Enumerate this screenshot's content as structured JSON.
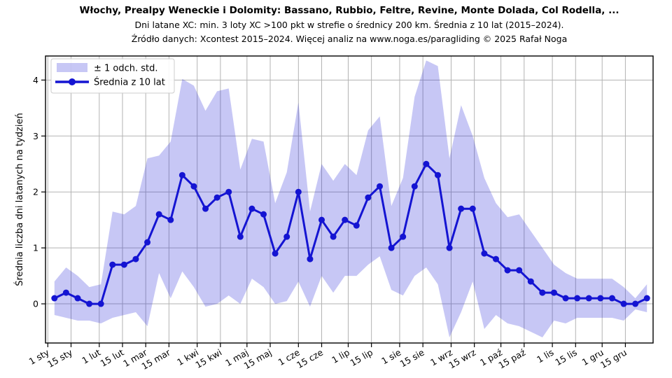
{
  "chart_data": {
    "type": "line",
    "title": "Włochy, Prealpy Weneckie i Dolomity: Bassano, Rubbio, Feltre, Revine, Monte Dolada, Col Rodella, ...",
    "subtitle": "Dni latane XC: min. 3 loty XC >100 pkt w strefie o średnicy 200 km. Średnia z 10 lat (2015–2024).",
    "source_note": "Źródło danych: Xcontest 2015–2024. Więcej analiz na www.noga.es/paragliding © 2025 Rafał Noga",
    "ylabel": "Średnia liczba dni latanych na tydzień",
    "x_tick_labels": [
      "1 sty",
      "15 sty",
      "1 lut",
      "15 lut",
      "1 mar",
      "15 mar",
      "1 kwi",
      "15 kwi",
      "1 maj",
      "15 maj",
      "1 cze",
      "15 cze",
      "1 lip",
      "15 lip",
      "1 sie",
      "15 sie",
      "1 wrz",
      "15 wrz",
      "1 paź",
      "15 paź",
      "1 lis",
      "15 lis",
      "1 gru",
      "15 gru"
    ],
    "x_tick_days": [
      0,
      14,
      31,
      45,
      59,
      73,
      90,
      104,
      120,
      134,
      151,
      165,
      181,
      195,
      212,
      226,
      243,
      257,
      273,
      287,
      304,
      318,
      334,
      348
    ],
    "y_ticks": [
      0,
      1,
      2,
      3,
      4
    ],
    "ylim": [
      -0.7,
      4.43
    ],
    "grid": true,
    "legend_position": "upper-left",
    "x_start_day": 4,
    "x_step_days": 7,
    "series": [
      {
        "name": "Średnia z 10 lat",
        "type": "line+marker",
        "values": [
          0.1,
          0.2,
          0.1,
          0.0,
          0.0,
          0.7,
          0.7,
          0.8,
          1.1,
          1.6,
          1.5,
          2.3,
          2.1,
          1.7,
          1.9,
          2.0,
          1.2,
          1.7,
          1.6,
          0.9,
          1.2,
          2.0,
          0.8,
          1.5,
          1.2,
          1.5,
          1.4,
          1.9,
          2.1,
          1.0,
          1.2,
          2.1,
          2.5,
          2.3,
          1.0,
          1.7,
          1.7,
          0.9,
          0.8,
          0.6,
          0.6,
          0.4,
          0.2,
          0.2,
          0.1,
          0.1,
          0.1,
          0.1,
          0.1,
          0.0,
          0.0,
          0.1
        ]
      },
      {
        "name": "± 1 odch. std.",
        "type": "band",
        "std": [
          0.3,
          0.45,
          0.4,
          0.3,
          0.35,
          0.95,
          0.9,
          0.95,
          1.5,
          1.05,
          1.4,
          1.72,
          1.8,
          1.75,
          1.9,
          1.85,
          1.2,
          1.25,
          1.3,
          0.9,
          1.15,
          1.6,
          0.85,
          1.0,
          1.0,
          1.0,
          0.9,
          1.2,
          1.25,
          0.75,
          1.05,
          1.6,
          1.85,
          1.95,
          1.6,
          1.85,
          1.3,
          1.35,
          1.0,
          0.95,
          1.0,
          0.9,
          0.8,
          0.5,
          0.45,
          0.35,
          0.35,
          0.35,
          0.35,
          0.3,
          0.1,
          0.25
        ]
      }
    ],
    "legend": {
      "entries": [
        {
          "label": "± 1 odch. std.",
          "swatch": "band"
        },
        {
          "label": "Średnia z 10 lat",
          "swatch": "line"
        }
      ]
    },
    "colors": {
      "line": "#1414d2",
      "band": "rgba(30,30,215,0.25)",
      "grid": "#b3b3b3",
      "axis": "#000000",
      "background": "#ffffff"
    }
  }
}
